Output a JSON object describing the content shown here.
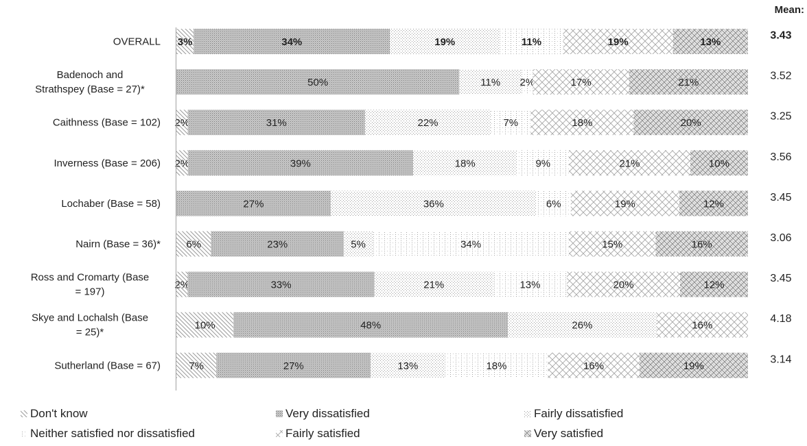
{
  "chart_data": {
    "type": "bar",
    "stacked": true,
    "orientation": "horizontal",
    "title": "",
    "xlabel": "",
    "ylabel": "",
    "xlim": [
      0,
      100
    ],
    "grid": false,
    "legend_position": "bottom",
    "mean_header": "Mean:",
    "categories": [
      "OVERALL",
      "Badenoch and Strathspey (Base = 27)*",
      "Caithness (Base = 102)",
      "Inverness (Base = 206)",
      "Lochaber (Base = 58)",
      "Nairn (Base = 36)*",
      "Ross and Cromarty (Base = 197)",
      "Skye and Lochalsh (Base = 25)*",
      "Sutherland (Base = 67)"
    ],
    "category_lines": [
      [
        "OVERALL"
      ],
      [
        "Badenoch and",
        "Strathspey (Base = 27)*"
      ],
      [
        "Caithness (Base = 102)"
      ],
      [
        "Inverness (Base = 206)"
      ],
      [
        "Lochaber (Base = 58)"
      ],
      [
        "Nairn (Base = 36)*"
      ],
      [
        "Ross and Cromarty (Base",
        "= 197)"
      ],
      [
        "Skye and Lochalsh (Base",
        "= 25)*"
      ],
      [
        "Sutherland (Base = 67)"
      ]
    ],
    "bold_categories": [
      "OVERALL"
    ],
    "means": [
      "3.43",
      "3.52",
      "3.25",
      "3.56",
      "3.45",
      "3.06",
      "3.45",
      "4.18",
      "3.14"
    ],
    "series": [
      {
        "name": "Don't know",
        "pattern": "diag-sparse",
        "values": [
          3,
          0,
          2,
          2,
          0,
          6,
          2,
          10,
          7
        ]
      },
      {
        "name": "Very dissatisfied",
        "pattern": "dense-dots",
        "values": [
          34,
          50,
          31,
          39,
          27,
          23,
          33,
          48,
          27
        ]
      },
      {
        "name": "Fairly dissatisfied",
        "pattern": "sparse-dots",
        "values": [
          19,
          11,
          22,
          18,
          36,
          5,
          21,
          26,
          13
        ]
      },
      {
        "name": "Neither satisfied nor dissatisfied",
        "pattern": "dotted-grid",
        "values": [
          11,
          2,
          7,
          9,
          6,
          34,
          13,
          0,
          18
        ]
      },
      {
        "name": "Fairly satisfied",
        "pattern": "crosshatch",
        "values": [
          19,
          17,
          18,
          21,
          19,
          15,
          20,
          16,
          16
        ]
      },
      {
        "name": "Very satisfied",
        "pattern": "zigzag",
        "values": [
          13,
          21,
          20,
          10,
          12,
          16,
          12,
          0,
          19
        ]
      }
    ],
    "value_labels": [
      [
        "3%",
        "34%",
        "19%",
        "11%",
        "19%",
        "13%"
      ],
      [
        "",
        "50%",
        "11%",
        "2%",
        "17%",
        "21%"
      ],
      [
        "2%",
        "31%",
        "22%",
        "7%",
        "18%",
        "20%"
      ],
      [
        "2%",
        "39%",
        "18%",
        "9%",
        "21%",
        "10%"
      ],
      [
        "",
        "27%",
        "36%",
        "6%",
        "19%",
        "12%"
      ],
      [
        "6%",
        "23%",
        "5%",
        "34%",
        "15%",
        "16%"
      ],
      [
        "2%",
        "33%",
        "21%",
        "13%",
        "20%",
        "12%"
      ],
      [
        "10%",
        "48%",
        "26%",
        "",
        "16%",
        ""
      ],
      [
        "7%",
        "27%",
        "13%",
        "18%",
        "16%",
        "19%"
      ]
    ]
  }
}
